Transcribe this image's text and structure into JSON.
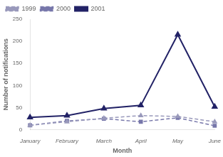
{
  "chart_data": {
    "type": "line",
    "categories": [
      "January",
      "February",
      "March",
      "April",
      "May",
      "June"
    ],
    "series": [
      {
        "name": "1999",
        "color": "#9999bb",
        "values": [
          10,
          18,
          26,
          32,
          30,
          18
        ],
        "marker": "triangle",
        "line_style": "dashed"
      },
      {
        "name": "2000",
        "color": "#7777aa",
        "values": [
          10,
          20,
          25,
          18,
          27,
          9
        ],
        "marker": "square",
        "line_style": "dashed"
      },
      {
        "name": "2001",
        "color": "#222266",
        "values": [
          28,
          32,
          48,
          55,
          215,
          52
        ],
        "marker": "triangle",
        "line_style": "solid"
      }
    ],
    "xlabel": "Month",
    "ylabel": "Number of notifications",
    "ylim": [
      0,
      250
    ],
    "yticks": [
      0,
      50,
      100,
      150,
      200,
      250
    ],
    "grid": false,
    "legend": "upper left"
  }
}
